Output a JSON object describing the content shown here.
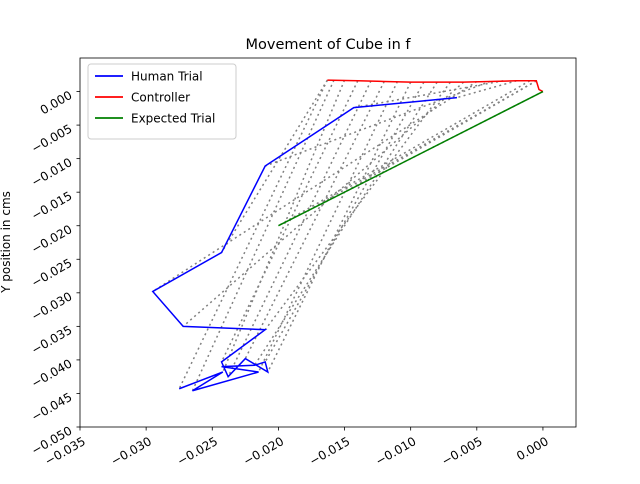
{
  "chart_data": {
    "type": "line",
    "title": "Movement of Cube in f",
    "xlabel": "",
    "ylabel": "Y position in cms",
    "xlim": [
      -0.035,
      0.0025
    ],
    "ylim": [
      -0.05,
      0.005
    ],
    "x_ticks": [
      -0.035,
      -0.03,
      -0.025,
      -0.02,
      -0.015,
      -0.01,
      -0.005,
      0.0
    ],
    "x_tick_labels": [
      "−0.035",
      "−0.030",
      "−0.025",
      "−0.020",
      "−0.015",
      "−0.010",
      "−0.005",
      "0.000"
    ],
    "y_ticks": [
      -0.05,
      -0.045,
      -0.04,
      -0.035,
      -0.03,
      -0.025,
      -0.02,
      -0.015,
      -0.01,
      -0.005,
      0.0
    ],
    "y_tick_labels": [
      "−0.050",
      "−0.045",
      "−0.040",
      "−0.035",
      "−0.030",
      "−0.025",
      "−0.020",
      "−0.015",
      "−0.010",
      "−0.005",
      "0.000"
    ],
    "grid": false,
    "legend_position": "top-left",
    "series": [
      {
        "name": "Human Trial",
        "color": "#0000ff",
        "style": "solid",
        "points": [
          [
            -0.0065,
            -0.0009
          ],
          [
            -0.0143,
            -0.0024
          ],
          [
            -0.021,
            -0.0111
          ],
          [
            -0.0243,
            -0.024
          ],
          [
            -0.0295,
            -0.0298
          ],
          [
            -0.0272,
            -0.035
          ],
          [
            -0.021,
            -0.0355
          ],
          [
            -0.0243,
            -0.0403
          ],
          [
            -0.0238,
            -0.0425
          ],
          [
            -0.0225,
            -0.0398
          ],
          [
            -0.0208,
            -0.0418
          ],
          [
            -0.021,
            -0.0403
          ],
          [
            -0.0218,
            -0.0408
          ],
          [
            -0.0243,
            -0.041
          ],
          [
            -0.0215,
            -0.0418
          ],
          [
            -0.0265,
            -0.0446
          ],
          [
            -0.0242,
            -0.0418
          ],
          [
            -0.0275,
            -0.0443
          ]
        ]
      },
      {
        "name": "Controller",
        "color": "#ff0000",
        "style": "solid",
        "points": [
          [
            -0.0163,
            0.0017
          ],
          [
            -0.014,
            0.0016
          ],
          [
            -0.012,
            0.0015
          ],
          [
            -0.01,
            0.0014
          ],
          [
            -0.008,
            0.0014
          ],
          [
            -0.006,
            0.0014
          ],
          [
            -0.004,
            0.0015
          ],
          [
            -0.002,
            0.0016
          ],
          [
            -0.0005,
            0.0016
          ],
          [
            -0.0003,
            0.0003
          ],
          [
            0.0,
            0.0
          ]
        ]
      },
      {
        "name": "Expected Trial",
        "color": "#008000",
        "style": "solid",
        "points": [
          [
            0.0,
            0.0
          ],
          [
            -0.02,
            -0.02
          ]
        ]
      }
    ],
    "connector_lines": {
      "color": "#808080",
      "style": "dotted",
      "segments": [
        [
          [
            -0.0163,
            0.0017
          ],
          [
            -0.0243,
            -0.024
          ]
        ],
        [
          [
            -0.0163,
            0.0017
          ],
          [
            -0.0275,
            -0.0443
          ]
        ],
        [
          [
            -0.0158,
            0.0017
          ],
          [
            -0.0265,
            -0.0446
          ]
        ],
        [
          [
            -0.015,
            0.0017
          ],
          [
            -0.0242,
            -0.0418
          ]
        ],
        [
          [
            -0.014,
            0.0016
          ],
          [
            -0.0243,
            -0.0403
          ]
        ],
        [
          [
            -0.013,
            0.0016
          ],
          [
            -0.0238,
            -0.0425
          ]
        ],
        [
          [
            -0.012,
            0.0015
          ],
          [
            -0.0225,
            -0.0398
          ]
        ],
        [
          [
            -0.011,
            0.0015
          ],
          [
            -0.0215,
            -0.0418
          ]
        ],
        [
          [
            -0.01,
            0.0014
          ],
          [
            -0.0208,
            -0.0418
          ]
        ],
        [
          [
            -0.009,
            0.0014
          ],
          [
            -0.021,
            -0.0403
          ]
        ],
        [
          [
            -0.008,
            0.0014
          ],
          [
            -0.0218,
            -0.0408
          ]
        ],
        [
          [
            -0.007,
            0.0014
          ],
          [
            -0.021,
            -0.0355
          ]
        ],
        [
          [
            -0.006,
            0.0014
          ],
          [
            -0.0272,
            -0.035
          ]
        ],
        [
          [
            -0.005,
            0.0015
          ],
          [
            -0.0295,
            -0.0298
          ]
        ],
        [
          [
            -0.004,
            0.0015
          ],
          [
            -0.021,
            -0.0111
          ]
        ],
        [
          [
            -0.003,
            0.0016
          ],
          [
            -0.0143,
            -0.0024
          ]
        ],
        [
          [
            -0.002,
            0.0016
          ],
          [
            -0.0065,
            -0.0009
          ]
        ],
        [
          [
            -0.001,
            0.0016
          ],
          [
            -0.02,
            -0.02
          ]
        ],
        [
          [
            -0.0005,
            0.0016
          ],
          [
            -0.018,
            -0.018
          ]
        ],
        [
          [
            0.0,
            0.0
          ],
          [
            -0.016,
            -0.016
          ]
        ],
        [
          [
            -0.0005,
            0.0016
          ],
          [
            -0.015,
            -0.015
          ]
        ]
      ]
    }
  }
}
